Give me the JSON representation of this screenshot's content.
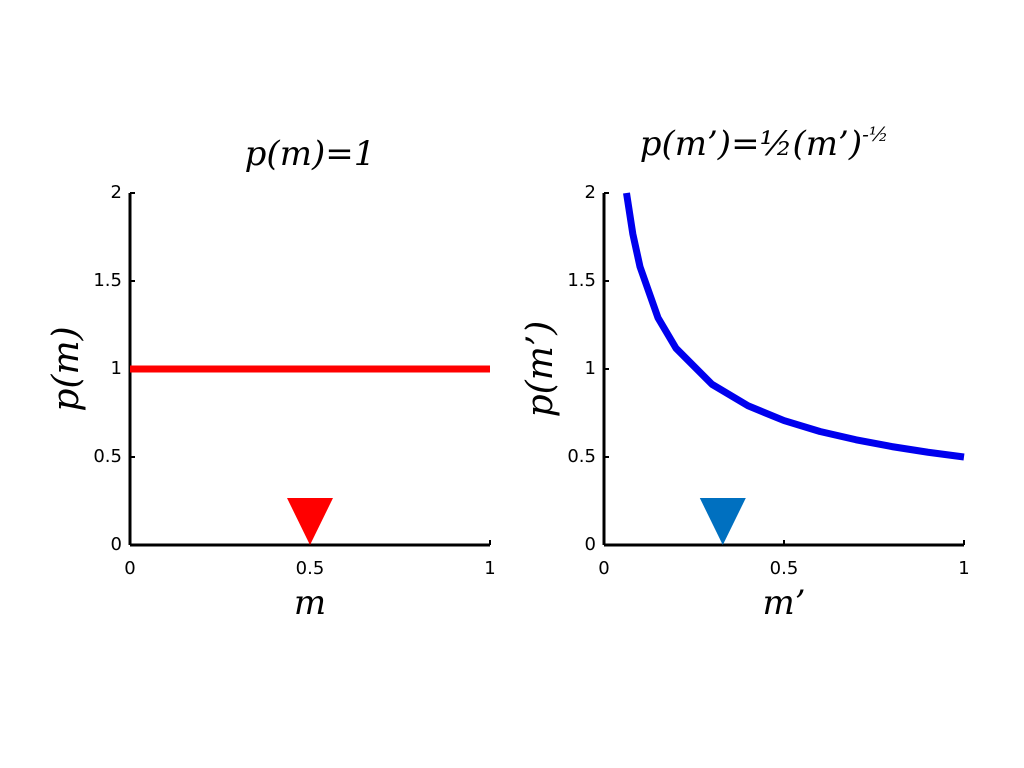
{
  "chart_data": [
    {
      "type": "line",
      "title": "p(m)=1",
      "xlabel": "m",
      "ylabel": "p(m)",
      "x": [
        0,
        1
      ],
      "values": [
        1,
        1
      ],
      "color": "#ff0000",
      "xlim": [
        0,
        1
      ],
      "ylim": [
        0,
        2
      ],
      "xticks": [
        0,
        0.5,
        1
      ],
      "yticks": [
        0,
        0.5,
        1,
        1.5,
        2
      ],
      "marker": {
        "x": 0.5,
        "y": 0,
        "color": "#ff0000"
      }
    },
    {
      "type": "line",
      "title": "p(m’)=½(m’)",
      "title_exponent": "-½",
      "xlabel": "m’",
      "ylabel": "p(m’)",
      "x": [
        0.0625,
        0.08,
        0.1,
        0.15,
        0.2,
        0.3,
        0.4,
        0.5,
        0.6,
        0.7,
        0.8,
        0.9,
        1
      ],
      "values": [
        2,
        1.768,
        1.581,
        1.291,
        1.118,
        0.913,
        0.791,
        0.707,
        0.645,
        0.598,
        0.559,
        0.527,
        0.5
      ],
      "color": "#0000ee",
      "xlim": [
        0,
        1
      ],
      "ylim": [
        0,
        2
      ],
      "xticks": [
        0,
        0.5,
        1
      ],
      "yticks": [
        0,
        0.5,
        1,
        1.5,
        2
      ],
      "marker": {
        "x": 0.33,
        "y": 0,
        "color": "#0070c0"
      }
    }
  ]
}
